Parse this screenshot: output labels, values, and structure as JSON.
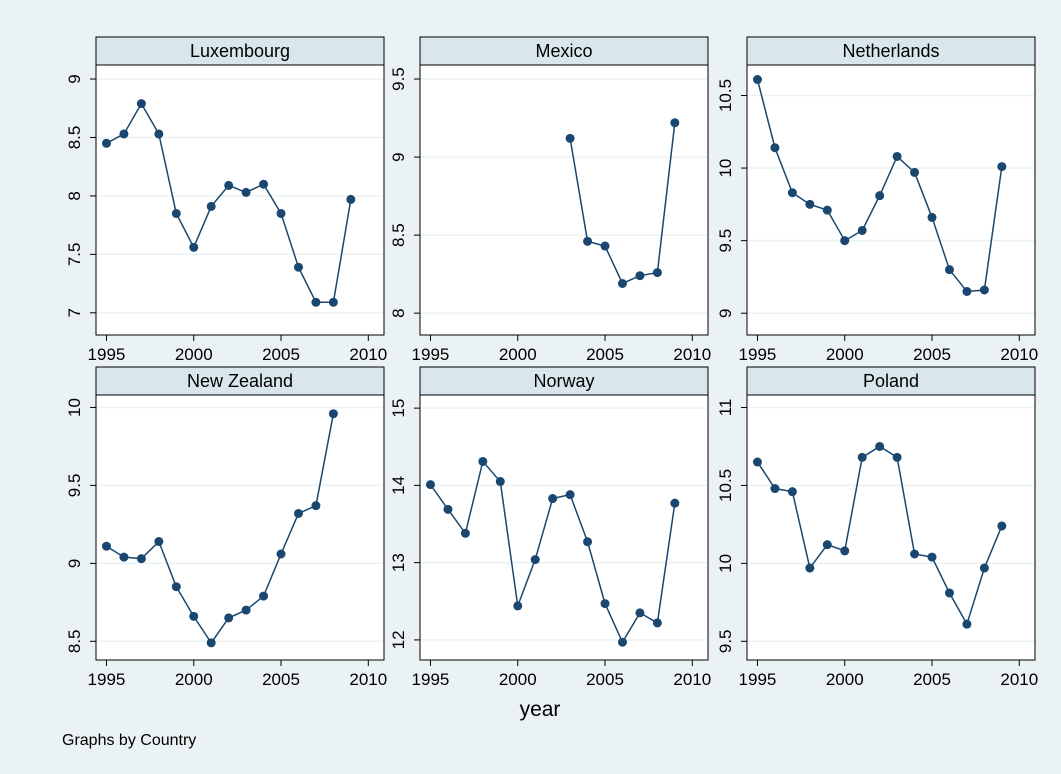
{
  "chart_data": [
    {
      "type": "line",
      "title": "Luxembourg",
      "x": [
        1995,
        1996,
        1997,
        1998,
        1999,
        2000,
        2001,
        2002,
        2003,
        2004,
        2005,
        2006,
        2007,
        2008,
        2009
      ],
      "series": [
        {
          "name": "Luxembourg",
          "color": "#1a476f",
          "values": [
            8.45,
            8.53,
            8.79,
            8.53,
            7.85,
            7.56,
            7.91,
            8.09,
            8.03,
            8.1,
            7.85,
            7.39,
            7.09,
            7.09,
            7.97
          ]
        }
      ],
      "xlim": [
        1994.4,
        2010.9
      ],
      "xticks": [
        1995,
        2000,
        2005,
        2010
      ],
      "ylim": [
        6.81,
        9.12
      ],
      "yticks": [
        7,
        7.5,
        8,
        8.5,
        9
      ],
      "grid": true
    },
    {
      "type": "line",
      "title": "Mexico",
      "x": [
        1995,
        1996,
        1997,
        1998,
        1999,
        2000,
        2001,
        2002,
        2003,
        2004,
        2005,
        2006,
        2007,
        2008,
        2009
      ],
      "series": [
        {
          "name": "Mexico",
          "color": "#1a476f",
          "values": [
            null,
            null,
            null,
            null,
            null,
            null,
            null,
            null,
            9.12,
            8.46,
            8.43,
            8.19,
            8.24,
            8.26,
            9.22
          ]
        }
      ],
      "xlim": [
        1994.4,
        2010.9
      ],
      "xticks": [
        1995,
        2000,
        2005,
        2010
      ],
      "ylim": [
        7.86,
        9.59
      ],
      "yticks": [
        8,
        8.5,
        9,
        9.5
      ],
      "grid": true
    },
    {
      "type": "line",
      "title": "Netherlands",
      "x": [
        1995,
        1996,
        1997,
        1998,
        1999,
        2000,
        2001,
        2002,
        2003,
        2004,
        2005,
        2006,
        2007,
        2008,
        2009
      ],
      "series": [
        {
          "name": "Netherlands",
          "color": "#1a476f",
          "values": [
            10.61,
            10.14,
            9.83,
            9.75,
            9.71,
            9.5,
            9.57,
            9.81,
            10.08,
            9.97,
            9.66,
            9.3,
            9.15,
            9.16,
            10.01
          ]
        }
      ],
      "xlim": [
        1994.4,
        2010.9
      ],
      "xticks": [
        1995,
        2000,
        2005,
        2010
      ],
      "ylim": [
        8.85,
        10.71
      ],
      "yticks": [
        9,
        9.5,
        10,
        10.5
      ],
      "grid": true
    },
    {
      "type": "line",
      "title": "New Zealand",
      "x": [
        1995,
        1996,
        1997,
        1998,
        1999,
        2000,
        2001,
        2002,
        2003,
        2004,
        2005,
        2006,
        2007,
        2008,
        2009
      ],
      "series": [
        {
          "name": "New Zealand",
          "color": "#1a476f",
          "values": [
            9.11,
            9.04,
            9.03,
            9.14,
            8.85,
            8.66,
            8.49,
            8.65,
            8.7,
            8.79,
            9.06,
            9.32,
            9.37,
            9.96,
            null
          ]
        }
      ],
      "xlim": [
        1994.4,
        2010.9
      ],
      "xticks": [
        1995,
        2000,
        2005,
        2010
      ],
      "ylim": [
        8.38,
        10.08
      ],
      "yticks": [
        8.5,
        9,
        9.5,
        10
      ],
      "grid": true
    },
    {
      "type": "line",
      "title": "Norway",
      "x": [
        1995,
        1996,
        1997,
        1998,
        1999,
        2000,
        2001,
        2002,
        2003,
        2004,
        2005,
        2006,
        2007,
        2008,
        2009
      ],
      "series": [
        {
          "name": "Norway",
          "color": "#1a476f",
          "values": [
            14.01,
            13.69,
            13.38,
            14.31,
            14.05,
            12.44,
            13.04,
            13.83,
            13.88,
            13.27,
            12.47,
            11.97,
            12.35,
            12.22,
            13.77
          ]
        }
      ],
      "xlim": [
        1994.4,
        2010.9
      ],
      "xticks": [
        1995,
        2000,
        2005,
        2010
      ],
      "ylim": [
        11.74,
        15.17
      ],
      "yticks": [
        12,
        13,
        14,
        15
      ],
      "grid": true
    },
    {
      "type": "line",
      "title": "Poland",
      "x": [
        1995,
        1996,
        1997,
        1998,
        1999,
        2000,
        2001,
        2002,
        2003,
        2004,
        2005,
        2006,
        2007,
        2008,
        2009
      ],
      "series": [
        {
          "name": "Poland",
          "color": "#1a476f",
          "values": [
            10.65,
            10.48,
            10.46,
            9.97,
            10.12,
            10.08,
            10.68,
            10.75,
            10.68,
            10.06,
            10.04,
            9.81,
            9.61,
            9.97,
            10.24
          ]
        }
      ],
      "xlim": [
        1994.4,
        2010.9
      ],
      "xticks": [
        1995,
        2000,
        2005,
        2010
      ],
      "ylim": [
        9.38,
        11.08
      ],
      "yticks": [
        9.5,
        10,
        10.5,
        11
      ],
      "grid": true
    }
  ],
  "x_label": "year",
  "note": "Graphs by Country"
}
